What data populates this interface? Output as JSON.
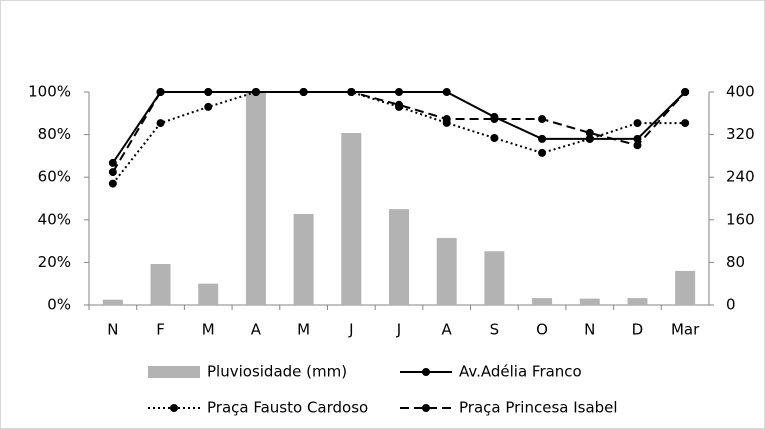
{
  "chart_data": {
    "type": "combo",
    "categories": [
      "N",
      "F",
      "M",
      "A",
      "M",
      "J",
      "J",
      "A",
      "S",
      "O",
      "N",
      "D",
      "Mar"
    ],
    "ylim": [
      0,
      100
    ],
    "yticks": [
      {
        "value": 0,
        "label": "0%"
      },
      {
        "value": 20,
        "label": "20%"
      },
      {
        "value": 40,
        "label": "40%"
      },
      {
        "value": 60,
        "label": "60%"
      },
      {
        "value": 80,
        "label": "80%"
      },
      {
        "value": 100,
        "label": "100%"
      }
    ],
    "y2lim": [
      0,
      400
    ],
    "y2ticks": [
      0,
      80,
      160,
      240,
      320,
      400
    ],
    "series": [
      {
        "name": "Pluviosidade (mm)",
        "type": "bar",
        "axis": "y2",
        "color": "#b3b3b3",
        "values": [
          10,
          77,
          40,
          400,
          171,
          323,
          180,
          126,
          101,
          13,
          12,
          13,
          64
        ]
      },
      {
        "name": "Av.Adélia Franco",
        "type": "line",
        "style": "solid",
        "color": "#000000",
        "values": [
          66.7,
          100,
          100,
          100,
          100,
          100,
          100,
          100,
          88.3,
          78,
          78,
          78,
          100
        ]
      },
      {
        "name": "Praça Fausto Cardoso",
        "type": "line",
        "style": "dotted",
        "color": "#000000",
        "values": [
          57,
          85.4,
          93,
          100,
          100,
          100,
          93,
          85.5,
          78.4,
          71.4,
          78,
          85.4,
          85.4
        ]
      },
      {
        "name": "Praça Princesa Isabel",
        "type": "line",
        "style": "dashed",
        "color": "#000000",
        "values": [
          62.4,
          100,
          100,
          100,
          100,
          100,
          94,
          87.3,
          87.3,
          87.3,
          80.8,
          75,
          100
        ]
      }
    ]
  }
}
